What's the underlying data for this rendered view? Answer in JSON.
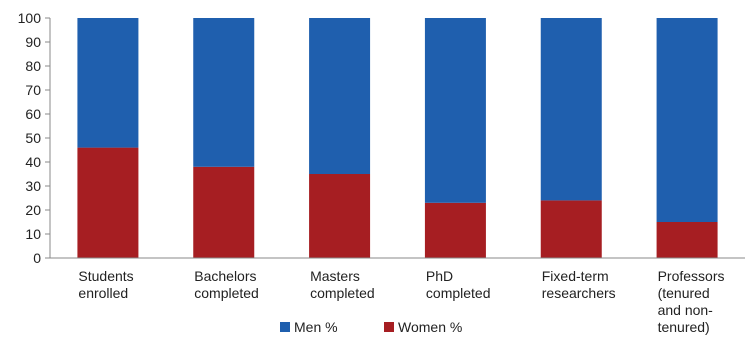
{
  "chart_data": {
    "type": "bar",
    "stacked": true,
    "categories": [
      [
        "Students",
        "enrolled"
      ],
      [
        "Bachelors",
        "completed"
      ],
      [
        "Masters",
        "completed"
      ],
      [
        "PhD",
        "completed"
      ],
      [
        "Fixed-term",
        "researchers"
      ],
      [
        "Professors",
        "(tenured",
        "and non-",
        "tenured)"
      ]
    ],
    "series": [
      {
        "name": "Women %",
        "color": "#a61e22",
        "values": [
          46,
          38,
          35,
          23,
          24,
          15
        ]
      },
      {
        "name": "Men %",
        "color": "#1f5fae",
        "values": [
          54,
          62,
          65,
          77,
          76,
          85
        ]
      }
    ],
    "legend_order": [
      1,
      0
    ],
    "ylim": [
      0,
      100
    ],
    "yticks": [
      "0",
      "10",
      "20",
      "30",
      "40",
      "50",
      "60",
      "70",
      "80",
      "90",
      "100"
    ],
    "grid": false,
    "legend_position": "bottom"
  }
}
